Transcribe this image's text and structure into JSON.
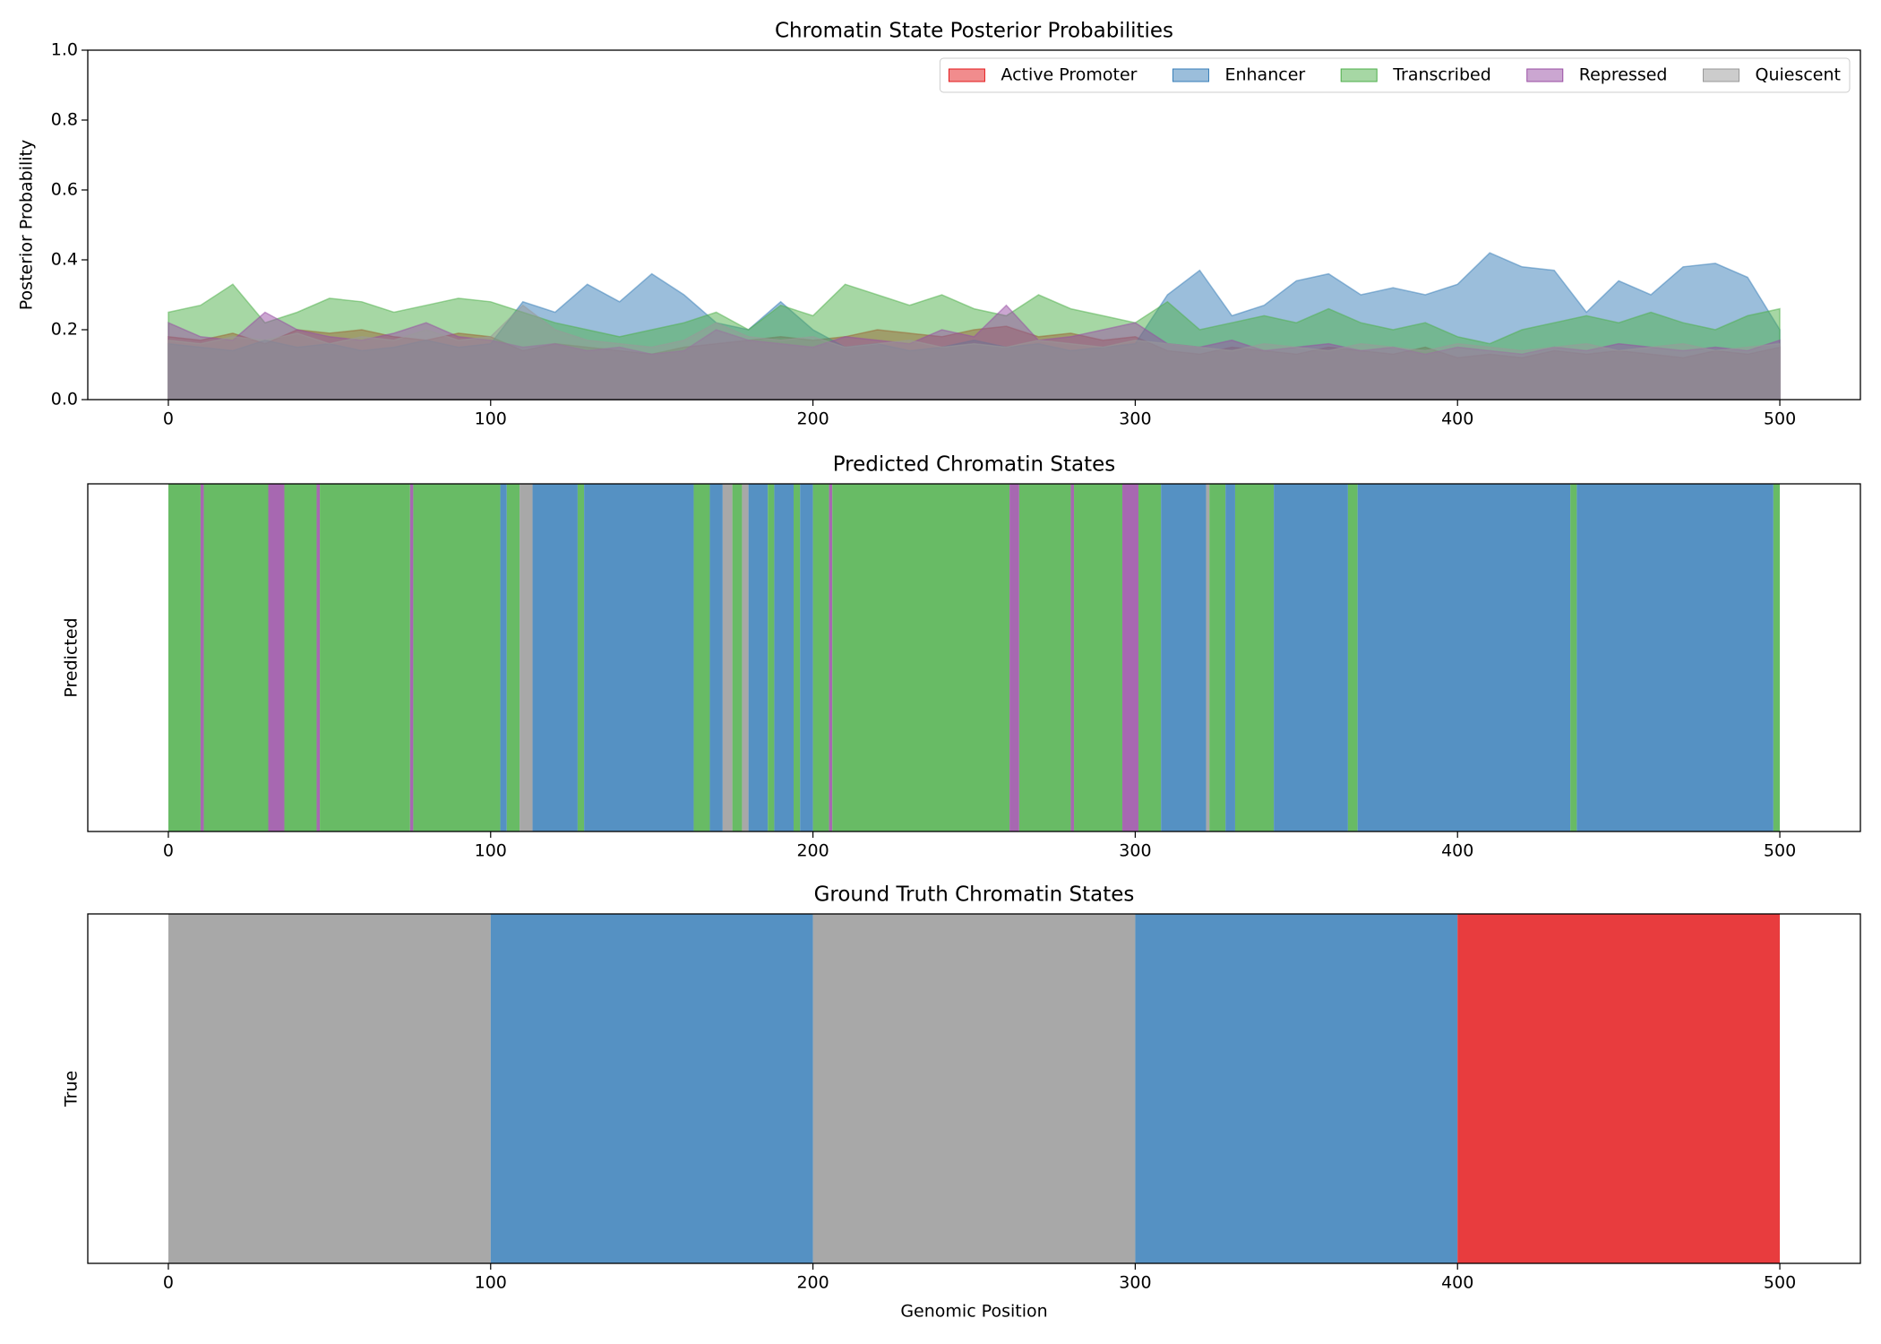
{
  "chart_data": [
    {
      "type": "area",
      "title": "Chromatin State Posterior Probabilities",
      "ylabel": "Posterior Probability",
      "x": [
        0,
        10,
        20,
        30,
        40,
        50,
        60,
        70,
        80,
        90,
        100,
        110,
        120,
        130,
        140,
        150,
        160,
        170,
        180,
        190,
        200,
        210,
        220,
        230,
        240,
        250,
        260,
        270,
        280,
        290,
        300,
        310,
        320,
        330,
        340,
        350,
        360,
        370,
        380,
        390,
        400,
        410,
        420,
        430,
        440,
        450,
        460,
        470,
        480,
        490,
        500
      ],
      "alpha": 0.5,
      "legend": "upper right",
      "series": [
        {
          "name": "Active Promoter",
          "color": "#e41a1c",
          "values": [
            0.18,
            0.17,
            0.19,
            0.16,
            0.2,
            0.19,
            0.2,
            0.18,
            0.17,
            0.19,
            0.18,
            0.14,
            0.16,
            0.15,
            0.14,
            0.13,
            0.15,
            0.16,
            0.17,
            0.18,
            0.17,
            0.18,
            0.2,
            0.19,
            0.18,
            0.2,
            0.21,
            0.18,
            0.19,
            0.17,
            0.18,
            0.14,
            0.13,
            0.15,
            0.14,
            0.13,
            0.15,
            0.14,
            0.13,
            0.15,
            0.12,
            0.13,
            0.12,
            0.14,
            0.13,
            0.14,
            0.13,
            0.12,
            0.14,
            0.13,
            0.15
          ]
        },
        {
          "name": "Enhancer",
          "color": "#377eb8",
          "values": [
            0.16,
            0.15,
            0.14,
            0.17,
            0.15,
            0.16,
            0.14,
            0.15,
            0.17,
            0.15,
            0.16,
            0.28,
            0.25,
            0.33,
            0.28,
            0.36,
            0.3,
            0.22,
            0.2,
            0.28,
            0.2,
            0.15,
            0.16,
            0.14,
            0.15,
            0.17,
            0.15,
            0.16,
            0.14,
            0.15,
            0.16,
            0.3,
            0.37,
            0.24,
            0.27,
            0.34,
            0.36,
            0.3,
            0.32,
            0.3,
            0.33,
            0.42,
            0.38,
            0.37,
            0.25,
            0.34,
            0.3,
            0.38,
            0.39,
            0.35,
            0.2
          ]
        },
        {
          "name": "Transcribed",
          "color": "#4daf4a",
          "values": [
            0.25,
            0.27,
            0.33,
            0.22,
            0.25,
            0.29,
            0.28,
            0.25,
            0.27,
            0.29,
            0.28,
            0.25,
            0.22,
            0.2,
            0.18,
            0.2,
            0.22,
            0.25,
            0.2,
            0.27,
            0.24,
            0.33,
            0.3,
            0.27,
            0.3,
            0.26,
            0.24,
            0.3,
            0.26,
            0.24,
            0.22,
            0.28,
            0.2,
            0.22,
            0.24,
            0.22,
            0.26,
            0.22,
            0.2,
            0.22,
            0.18,
            0.16,
            0.2,
            0.22,
            0.24,
            0.22,
            0.25,
            0.22,
            0.2,
            0.24,
            0.26
          ]
        },
        {
          "name": "Repressed",
          "color": "#984ea3",
          "values": [
            0.22,
            0.18,
            0.17,
            0.25,
            0.2,
            0.18,
            0.17,
            0.19,
            0.22,
            0.18,
            0.17,
            0.15,
            0.16,
            0.14,
            0.15,
            0.13,
            0.14,
            0.2,
            0.17,
            0.16,
            0.15,
            0.18,
            0.17,
            0.16,
            0.2,
            0.18,
            0.27,
            0.17,
            0.18,
            0.2,
            0.22,
            0.16,
            0.15,
            0.17,
            0.14,
            0.15,
            0.16,
            0.14,
            0.15,
            0.13,
            0.15,
            0.14,
            0.13,
            0.15,
            0.14,
            0.16,
            0.15,
            0.14,
            0.15,
            0.14,
            0.17
          ]
        },
        {
          "name": "Quiescent",
          "color": "#999999",
          "values": [
            0.17,
            0.16,
            0.18,
            0.17,
            0.19,
            0.16,
            0.18,
            0.17,
            0.2,
            0.17,
            0.18,
            0.27,
            0.2,
            0.17,
            0.16,
            0.15,
            0.17,
            0.22,
            0.18,
            0.17,
            0.18,
            0.15,
            0.16,
            0.17,
            0.15,
            0.16,
            0.15,
            0.17,
            0.16,
            0.15,
            0.17,
            0.16,
            0.15,
            0.14,
            0.16,
            0.15,
            0.14,
            0.16,
            0.15,
            0.14,
            0.16,
            0.15,
            0.14,
            0.15,
            0.16,
            0.14,
            0.15,
            0.16,
            0.14,
            0.15,
            0.16
          ]
        }
      ],
      "xlim": [
        -25,
        525
      ],
      "xticks": [
        0,
        100,
        200,
        300,
        400,
        500
      ],
      "ylim": [
        0,
        1
      ],
      "yticks": [
        {
          "value": 0,
          "label": "0.0"
        },
        {
          "value": 0.2,
          "label": "0.2"
        },
        {
          "value": 0.4,
          "label": "0.4"
        },
        {
          "value": 0.6,
          "label": "0.6"
        },
        {
          "value": 0.8,
          "label": "0.8"
        },
        {
          "value": 1,
          "label": "1.0"
        }
      ]
    },
    {
      "type": "state-track",
      "title": "Predicted Chromatin States",
      "ylabel": "Predicted",
      "state_colors": [
        "#e41a1c",
        "#377eb8",
        "#4daf4a",
        "#984ea3",
        "#999999"
      ],
      "alpha": 0.85,
      "segments": [
        {
          "start": 0,
          "end": 10,
          "state": 2
        },
        {
          "start": 10,
          "end": 11,
          "state": 3
        },
        {
          "start": 11,
          "end": 31,
          "state": 2
        },
        {
          "start": 31,
          "end": 36,
          "state": 3
        },
        {
          "start": 36,
          "end": 46,
          "state": 2
        },
        {
          "start": 46,
          "end": 47,
          "state": 3
        },
        {
          "start": 47,
          "end": 75,
          "state": 2
        },
        {
          "start": 75,
          "end": 76,
          "state": 3
        },
        {
          "start": 76,
          "end": 103,
          "state": 2
        },
        {
          "start": 103,
          "end": 105,
          "state": 1
        },
        {
          "start": 105,
          "end": 109,
          "state": 2
        },
        {
          "start": 109,
          "end": 113,
          "state": 4
        },
        {
          "start": 113,
          "end": 127,
          "state": 1
        },
        {
          "start": 127,
          "end": 129,
          "state": 2
        },
        {
          "start": 129,
          "end": 163,
          "state": 1
        },
        {
          "start": 163,
          "end": 168,
          "state": 2
        },
        {
          "start": 168,
          "end": 172,
          "state": 1
        },
        {
          "start": 172,
          "end": 175,
          "state": 4
        },
        {
          "start": 175,
          "end": 178,
          "state": 2
        },
        {
          "start": 178,
          "end": 180,
          "state": 4
        },
        {
          "start": 180,
          "end": 186,
          "state": 1
        },
        {
          "start": 186,
          "end": 188,
          "state": 2
        },
        {
          "start": 188,
          "end": 194,
          "state": 1
        },
        {
          "start": 194,
          "end": 196,
          "state": 2
        },
        {
          "start": 196,
          "end": 200,
          "state": 1
        },
        {
          "start": 200,
          "end": 205,
          "state": 2
        },
        {
          "start": 205,
          "end": 206,
          "state": 3
        },
        {
          "start": 206,
          "end": 261,
          "state": 2
        },
        {
          "start": 261,
          "end": 264,
          "state": 3
        },
        {
          "start": 264,
          "end": 280,
          "state": 2
        },
        {
          "start": 280,
          "end": 281,
          "state": 3
        },
        {
          "start": 281,
          "end": 296,
          "state": 2
        },
        {
          "start": 296,
          "end": 301,
          "state": 3
        },
        {
          "start": 301,
          "end": 308,
          "state": 2
        },
        {
          "start": 308,
          "end": 322,
          "state": 1
        },
        {
          "start": 322,
          "end": 323,
          "state": 4
        },
        {
          "start": 323,
          "end": 328,
          "state": 2
        },
        {
          "start": 328,
          "end": 331,
          "state": 1
        },
        {
          "start": 331,
          "end": 343,
          "state": 2
        },
        {
          "start": 343,
          "end": 366,
          "state": 1
        },
        {
          "start": 366,
          "end": 369,
          "state": 2
        },
        {
          "start": 369,
          "end": 435,
          "state": 1
        },
        {
          "start": 435,
          "end": 437,
          "state": 2
        },
        {
          "start": 437,
          "end": 498,
          "state": 1
        },
        {
          "start": 498,
          "end": 500,
          "state": 2
        }
      ],
      "xlim": [
        -25,
        525
      ],
      "xticks": [
        0,
        100,
        200,
        300,
        400,
        500
      ]
    },
    {
      "type": "state-track",
      "title": "Ground Truth Chromatin States",
      "ylabel": "True",
      "xlabel": "Genomic Position",
      "state_colors": [
        "#e41a1c",
        "#377eb8",
        "#4daf4a",
        "#984ea3",
        "#999999"
      ],
      "alpha": 0.85,
      "segments": [
        {
          "start": 0,
          "end": 100,
          "state": 4
        },
        {
          "start": 100,
          "end": 200,
          "state": 1
        },
        {
          "start": 200,
          "end": 300,
          "state": 4
        },
        {
          "start": 300,
          "end": 400,
          "state": 1
        },
        {
          "start": 400,
          "end": 500,
          "state": 0
        }
      ],
      "xlim": [
        -25,
        525
      ],
      "xticks": [
        0,
        100,
        200,
        300,
        400,
        500
      ]
    }
  ]
}
